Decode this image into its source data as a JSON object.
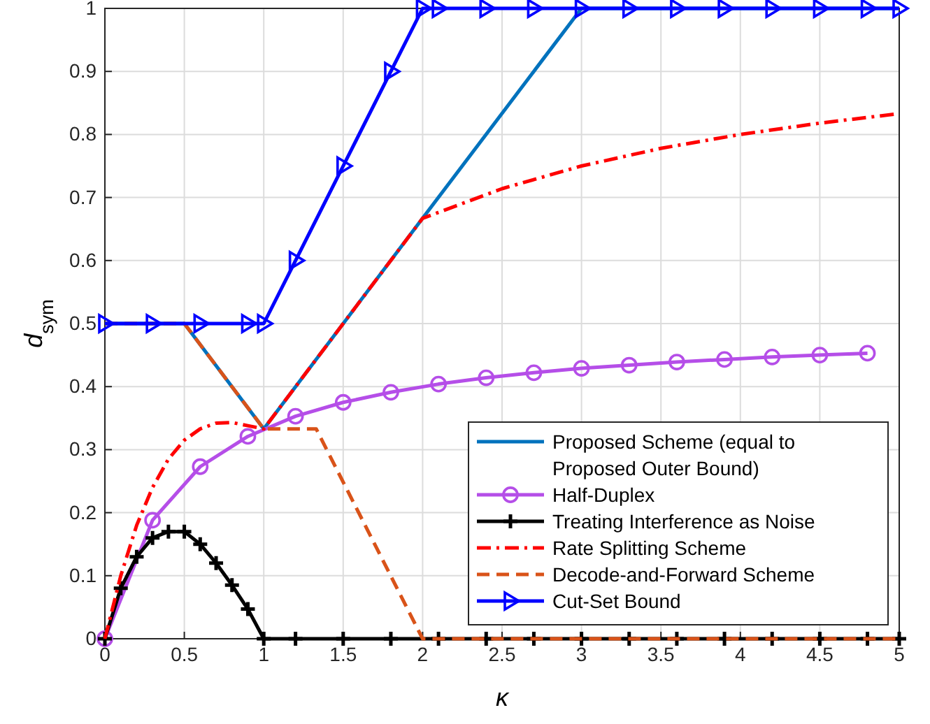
{
  "chart_data": {
    "type": "line",
    "xlabel": "κ",
    "ylabel": "d$_{sym}$",
    "xlim": [
      0,
      5
    ],
    "ylim": [
      0,
      1
    ],
    "xticks": [
      0,
      0.5,
      1,
      1.5,
      2,
      2.5,
      3,
      3.5,
      4,
      4.5,
      5
    ],
    "yticks": [
      0,
      0.1,
      0.2,
      0.3,
      0.4,
      0.5,
      0.6,
      0.7,
      0.8,
      0.9,
      1
    ],
    "grid": true,
    "legend": "bottom right",
    "series": [
      {
        "name": "Proposed Scheme (equal to Proposed Outer Bound)",
        "color": "#0072bd",
        "marker": "none",
        "line_style": "solid",
        "x": [
          0,
          0.5,
          1,
          2,
          3,
          5
        ],
        "values": [
          0.5,
          0.5,
          0.333,
          0.667,
          1,
          1
        ]
      },
      {
        "name": "Half-Duplex",
        "color": "#b54ee8",
        "marker": "circle",
        "line_style": "solid",
        "x": [
          0,
          0.3,
          0.6,
          0.9,
          1.2,
          1.5,
          1.8,
          2.1,
          2.4,
          2.7,
          3,
          3.3,
          3.6,
          3.9,
          4.2,
          4.5,
          4.8
        ],
        "values": [
          0,
          0.188,
          0.273,
          0.321,
          0.353,
          0.375,
          0.391,
          0.404,
          0.414,
          0.422,
          0.429,
          0.434,
          0.439,
          0.443,
          0.447,
          0.45,
          0.453
        ]
      },
      {
        "name": "Treating Interference as Noise",
        "color": "#000000",
        "marker": "cross",
        "line_style": "solid",
        "x": [
          0,
          0.1,
          0.2,
          0.3,
          0.4,
          0.5,
          0.6,
          0.7,
          0.8,
          0.9,
          1,
          1.2,
          1.5,
          1.8,
          2.1,
          2.4,
          2.7,
          3,
          3.3,
          3.6,
          3.9,
          4.2,
          4.5,
          4.8,
          5
        ],
        "values": [
          0,
          0.08,
          0.13,
          0.16,
          0.17,
          0.17,
          0.15,
          0.12,
          0.085,
          0.047,
          0,
          0,
          0,
          0,
          0,
          0,
          0,
          0,
          0,
          0,
          0,
          0,
          0,
          0,
          0
        ]
      },
      {
        "name": "Rate Splitting Scheme",
        "color": "#ff0000",
        "marker": "none",
        "line_style": "dashdot",
        "x": [
          0,
          0.1,
          0.2,
          0.3,
          0.4,
          0.5,
          0.6,
          0.7,
          0.8,
          0.9,
          1,
          2,
          2.5,
          3,
          3.5,
          4,
          4.5,
          5
        ],
        "values": [
          0,
          0.1,
          0.18,
          0.24,
          0.285,
          0.315,
          0.333,
          0.342,
          0.343,
          0.338,
          0.333,
          0.667,
          0.714,
          0.75,
          0.778,
          0.8,
          0.818,
          0.833
        ]
      },
      {
        "name": "Decode-and-Forward Scheme",
        "color": "#d95319",
        "marker": "none",
        "line_style": "dashed",
        "x": [
          0,
          0.5,
          1,
          1.33,
          2,
          5
        ],
        "values": [
          0.5,
          0.5,
          0.333,
          0.333,
          0,
          0
        ]
      },
      {
        "name": "Cut-Set Bound",
        "color": "#0000ff",
        "marker": "triangle",
        "line_style": "solid",
        "x": [
          0,
          0.3,
          0.6,
          0.9,
          1,
          1.2,
          1.5,
          1.8,
          2,
          2.1,
          2.4,
          2.7,
          3,
          3.3,
          3.6,
          3.9,
          4.2,
          4.5,
          4.8,
          5
        ],
        "values": [
          0.5,
          0.5,
          0.5,
          0.5,
          0.5,
          0.6,
          0.75,
          0.9,
          1,
          1,
          1,
          1,
          1,
          1,
          1,
          1,
          1,
          1,
          1,
          1
        ]
      }
    ]
  }
}
